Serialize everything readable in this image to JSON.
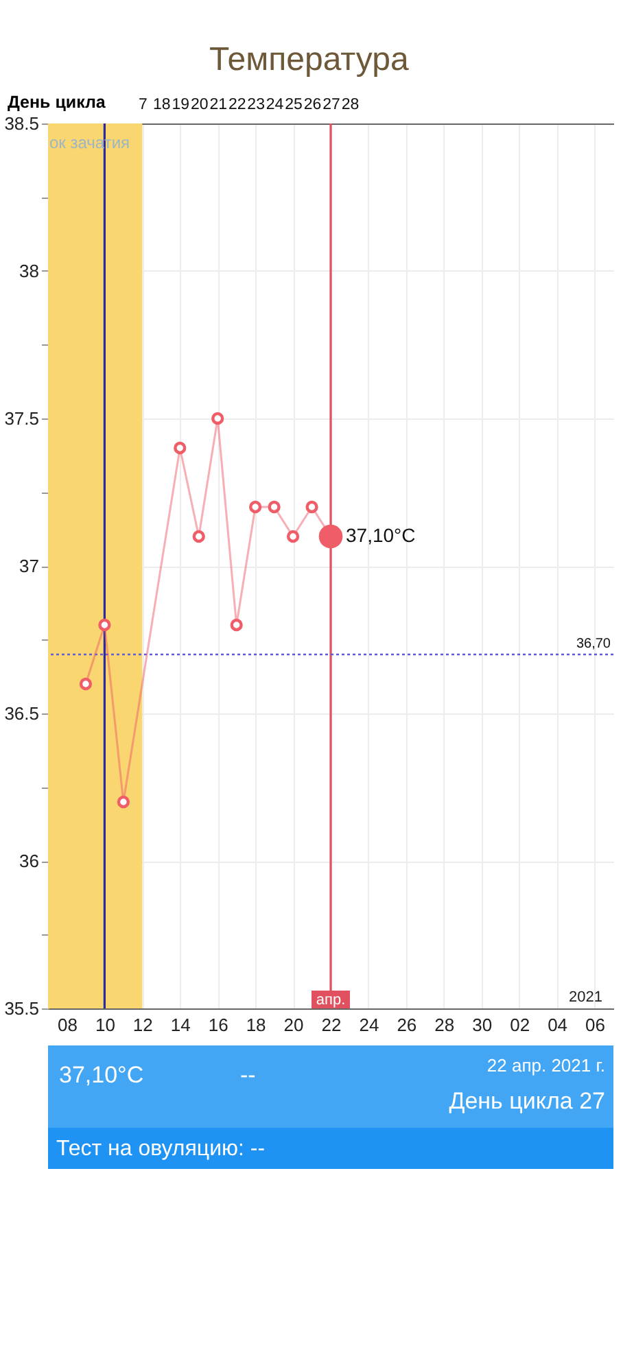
{
  "chart_data": {
    "type": "line",
    "title": "Температура",
    "x2label": "День цикла",
    "xlim": [
      "2021-04-07",
      "2021-05-07"
    ],
    "xticks": [
      {
        "value": "2021-04-08",
        "label": "08"
      },
      {
        "value": "2021-04-10",
        "label": "10"
      },
      {
        "value": "2021-04-12",
        "label": "12"
      },
      {
        "value": "2021-04-14",
        "label": "14"
      },
      {
        "value": "2021-04-16",
        "label": "16"
      },
      {
        "value": "2021-04-18",
        "label": "18"
      },
      {
        "value": "2021-04-20",
        "label": "20"
      },
      {
        "value": "2021-04-22",
        "label": "22"
      },
      {
        "value": "2021-04-24",
        "label": "24"
      },
      {
        "value": "2021-04-26",
        "label": "26"
      },
      {
        "value": "2021-04-28",
        "label": "28"
      },
      {
        "value": "2021-04-30",
        "label": "30"
      },
      {
        "value": "2021-05-02",
        "label": "02"
      },
      {
        "value": "2021-05-04",
        "label": "04"
      },
      {
        "value": "2021-05-06",
        "label": "06"
      }
    ],
    "x2lim": [
      "2021-04-07",
      "2021-05-07"
    ],
    "x2ticks": [
      {
        "value": "2021-04-12",
        "label": "7"
      },
      {
        "value": "2021-04-13",
        "label": "18"
      },
      {
        "value": "2021-04-14",
        "label": "19"
      },
      {
        "value": "2021-04-15",
        "label": "20"
      },
      {
        "value": "2021-04-16",
        "label": "21"
      },
      {
        "value": "2021-04-17",
        "label": "22"
      },
      {
        "value": "2021-04-18",
        "label": "23"
      },
      {
        "value": "2021-04-19",
        "label": "24"
      },
      {
        "value": "2021-04-20",
        "label": "25"
      },
      {
        "value": "2021-04-21",
        "label": "26"
      },
      {
        "value": "2021-04-22",
        "label": "27"
      },
      {
        "value": "2021-04-23",
        "label": "28"
      }
    ],
    "ylim": [
      35.5,
      38.5
    ],
    "yticks": [
      35.5,
      {
        "value": 35.75,
        "label": null
      },
      36,
      {
        "value": 36.25,
        "label": null
      },
      36.5,
      {
        "value": 36.75,
        "label": null
      },
      37,
      {
        "value": 37.25,
        "label": null
      },
      37.5,
      {
        "value": 37.75,
        "label": null
      },
      38,
      {
        "value": 38.25,
        "label": null
      },
      38.5
    ],
    "grid": true,
    "series": [
      {
        "color": "#ef5d69",
        "marker": "circle",
        "line_style": "solid",
        "x": [
          "2021-04-09",
          "2021-04-10",
          "2021-04-11",
          "2021-04-14",
          "2021-04-15",
          "2021-04-16",
          "2021-04-17",
          "2021-04-18",
          "2021-04-19",
          "2021-04-20",
          "2021-04-21",
          "2021-04-22"
        ],
        "values": [
          36.6,
          36.8,
          36.2,
          37.4,
          37.1,
          37.5,
          36.8,
          37.2,
          37.2,
          37.1,
          37.2,
          37.1
        ],
        "value_labels": [
          null,
          null,
          null,
          null,
          null,
          null,
          null,
          null,
          null,
          null,
          null,
          "37,10°C"
        ]
      }
    ],
    "ref_lines": [
      {
        "axis": "y",
        "value": 36.7,
        "label": "36,70",
        "color": "#5b5bd6",
        "line_style": "dotted"
      },
      {
        "axis": "x",
        "value": "2021-04-10",
        "color": "#2b2b9e"
      },
      {
        "axis": "x",
        "value": "2021-04-22",
        "label": "апр.",
        "color": "#e0505e"
      }
    ],
    "bands": [
      {
        "axis": "x",
        "from": "2021-04-07",
        "to": "2021-04-12",
        "label": "ок зачатия",
        "color": "#f9d66f"
      }
    ],
    "annotations": [
      "2021",
      "37,10°C",
      "--",
      "22 апр. 2021 г.",
      "День цикла 27",
      "Тест на овуляцию: --"
    ]
  }
}
